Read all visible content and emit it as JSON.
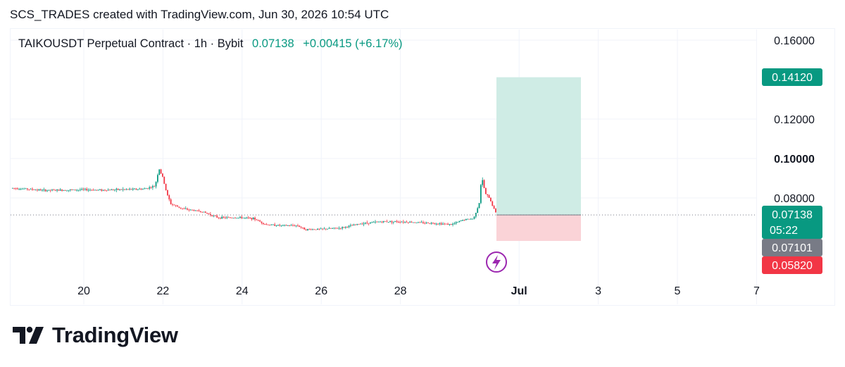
{
  "header": {
    "attribution": "SCS_TRADES created with TradingView.com, Jun 30, 2026 10:54 UTC"
  },
  "legend": {
    "symbol": "TAIKOUSDT Perpetual Contract · 1h · Bybit",
    "last": "0.07138",
    "change": "+0.00415 (+6.17%)"
  },
  "brand": {
    "name": "TradingView",
    "icon": "tradingview-logo-icon"
  },
  "event_icon": "lightning-icon",
  "colors": {
    "up": "#089981",
    "down": "#f23645",
    "target_zone": "#cfece5",
    "stop_zone": "#fad3d7",
    "tag_green": "#089981",
    "tag_gray": "#787b86",
    "tag_red": "#f23645",
    "event_purple": "#9c27b0"
  },
  "chart_data": {
    "type": "candlestick",
    "interval": "1h",
    "y_axis": {
      "ticks": [
        "0.16000",
        "0.12000",
        "0.10000",
        "0.08000"
      ],
      "tick_values": [
        0.16,
        0.12,
        0.1,
        0.08
      ],
      "bold_tick": "0.10000"
    },
    "x_axis": {
      "ticks": [
        "20",
        "22",
        "24",
        "26",
        "28",
        "Jul",
        "3",
        "5",
        "7"
      ],
      "bold_tick": "Jul"
    },
    "price_tags": [
      {
        "label": "0.14120",
        "value": 0.1412,
        "color": "green",
        "sub": ""
      },
      {
        "label": "0.07138",
        "value": 0.07138,
        "color": "green",
        "sub": "05:22"
      },
      {
        "label": "0.07101",
        "value": 0.07101,
        "color": "gray",
        "sub": ""
      },
      {
        "label": "0.05820",
        "value": 0.0582,
        "color": "red",
        "sub": ""
      }
    ],
    "position": {
      "type": "long",
      "entry": 0.07138,
      "target": 0.1412,
      "stop": 0.0582
    },
    "price_path": [
      [
        18.2,
        0.085
      ],
      [
        18.6,
        0.0845
      ],
      [
        19.0,
        0.0838
      ],
      [
        19.5,
        0.084
      ],
      [
        20.0,
        0.0842
      ],
      [
        20.5,
        0.084
      ],
      [
        21.0,
        0.0843
      ],
      [
        21.5,
        0.0845
      ],
      [
        21.8,
        0.086
      ],
      [
        21.9,
        0.095
      ],
      [
        22.0,
        0.09
      ],
      [
        22.1,
        0.082
      ],
      [
        22.2,
        0.077
      ],
      [
        22.5,
        0.0745
      ],
      [
        23.0,
        0.073
      ],
      [
        23.4,
        0.07
      ],
      [
        24.0,
        0.07
      ],
      [
        24.3,
        0.0695
      ],
      [
        24.6,
        0.0665
      ],
      [
        25.0,
        0.066
      ],
      [
        25.4,
        0.066
      ],
      [
        25.6,
        0.064
      ],
      [
        26.0,
        0.0642
      ],
      [
        26.5,
        0.0648
      ],
      [
        27.0,
        0.067
      ],
      [
        27.5,
        0.068
      ],
      [
        28.0,
        0.068
      ],
      [
        28.5,
        0.0675
      ],
      [
        29.0,
        0.067
      ],
      [
        29.3,
        0.0665
      ],
      [
        29.6,
        0.069
      ],
      [
        29.85,
        0.0695
      ],
      [
        30.0,
        0.078
      ],
      [
        30.05,
        0.091
      ],
      [
        30.15,
        0.082
      ],
      [
        30.25,
        0.08
      ],
      [
        30.35,
        0.075
      ],
      [
        30.45,
        0.0714
      ]
    ]
  }
}
